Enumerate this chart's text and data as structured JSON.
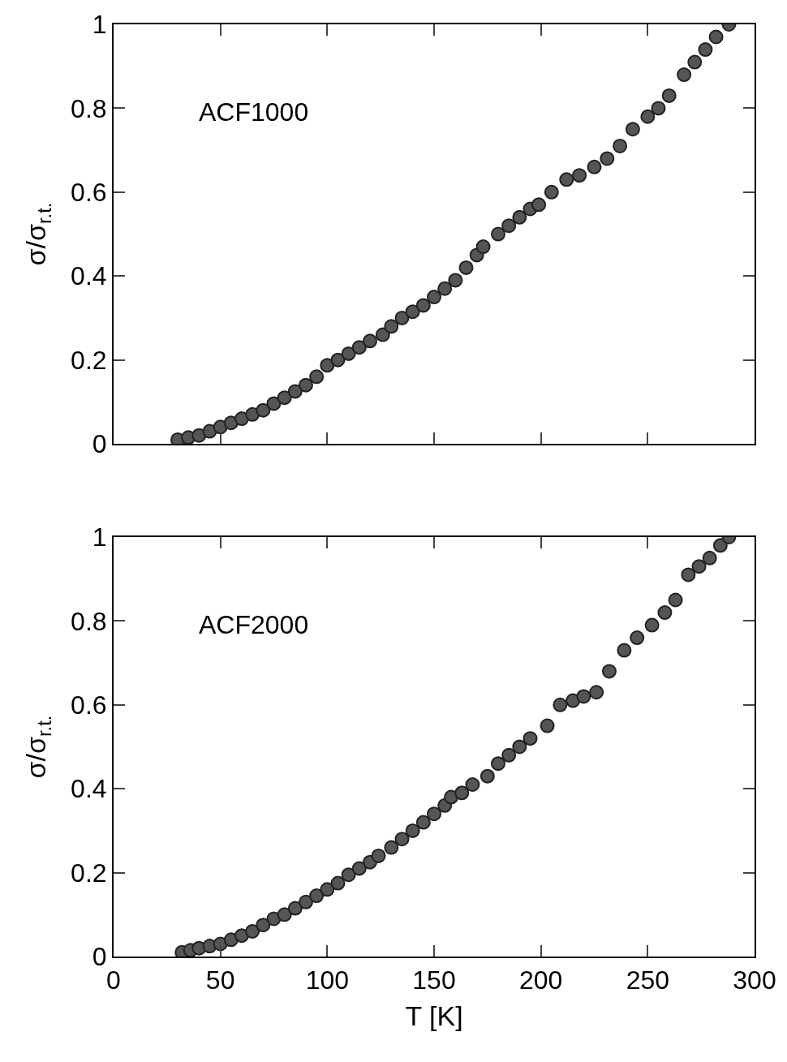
{
  "chart_data": [
    {
      "type": "scatter",
      "annotations": [
        "ACF1000"
      ],
      "ylabel": "σ/σ$_{r.t.}$",
      "marker": "circle",
      "legend": false,
      "tick_labels": "y",
      "xlim": [
        0,
        300
      ],
      "xticks": [
        {
          "value": 0,
          "label": null
        },
        {
          "value": 50,
          "label": null
        },
        {
          "value": 100,
          "label": null
        },
        {
          "value": 150,
          "label": null
        },
        {
          "value": 200,
          "label": null
        },
        {
          "value": 250,
          "label": null
        },
        {
          "value": 300,
          "label": null
        }
      ],
      "ylim": [
        0,
        1
      ],
      "yticks": [
        0,
        0.2,
        0.4,
        0.6,
        0.8,
        1
      ],
      "series": [
        {
          "color": "#555555",
          "x": [
            30,
            35,
            40,
            45,
            50,
            55,
            60,
            65,
            70,
            75,
            80,
            85,
            90,
            95,
            100,
            105,
            110,
            115,
            120,
            126,
            130,
            135,
            140,
            145,
            150,
            155,
            160,
            165,
            170,
            173,
            180,
            185,
            190,
            195,
            199,
            205,
            212,
            218,
            225,
            231,
            237,
            243,
            250,
            255,
            260,
            267,
            272,
            277,
            282,
            288
          ],
          "values": [
            0.01,
            0.015,
            0.02,
            0.03,
            0.04,
            0.05,
            0.06,
            0.07,
            0.08,
            0.096,
            0.11,
            0.125,
            0.14,
            0.16,
            0.187,
            0.2,
            0.215,
            0.23,
            0.245,
            0.26,
            0.28,
            0.3,
            0.315,
            0.33,
            0.35,
            0.37,
            0.39,
            0.42,
            0.45,
            0.47,
            0.5,
            0.52,
            0.54,
            0.56,
            0.57,
            0.6,
            0.63,
            0.64,
            0.66,
            0.68,
            0.71,
            0.75,
            0.78,
            0.8,
            0.83,
            0.88,
            0.91,
            0.94,
            0.97,
            1.0
          ]
        }
      ]
    },
    {
      "type": "scatter",
      "annotations": [
        "ACF2000"
      ],
      "ylabel": "σ/σ$_{r.t.}$",
      "xlabel": "T [K]",
      "marker": "circle",
      "legend": false,
      "xlim": [
        0,
        300
      ],
      "xticks": [
        0,
        50,
        100,
        150,
        200,
        250,
        300
      ],
      "ylim": [
        0,
        1
      ],
      "yticks": [
        0,
        0.2,
        0.4,
        0.6,
        0.8,
        1
      ],
      "series": [
        {
          "color": "#555555",
          "x": [
            32,
            36,
            40,
            45,
            50,
            55,
            60,
            65,
            70,
            75,
            80,
            85,
            90,
            95,
            100,
            105,
            110,
            115,
            120,
            124,
            130,
            135,
            140,
            145,
            150,
            155,
            158,
            163,
            168,
            175,
            180,
            185,
            190,
            195,
            203,
            209,
            215,
            220,
            226,
            232,
            239,
            245,
            252,
            258,
            263,
            269,
            274,
            279,
            284,
            288
          ],
          "values": [
            0.01,
            0.015,
            0.02,
            0.025,
            0.03,
            0.04,
            0.05,
            0.06,
            0.075,
            0.09,
            0.1,
            0.115,
            0.13,
            0.145,
            0.16,
            0.175,
            0.195,
            0.21,
            0.225,
            0.24,
            0.26,
            0.28,
            0.3,
            0.32,
            0.34,
            0.36,
            0.38,
            0.39,
            0.41,
            0.43,
            0.46,
            0.48,
            0.5,
            0.52,
            0.55,
            0.6,
            0.61,
            0.62,
            0.63,
            0.68,
            0.73,
            0.76,
            0.79,
            0.82,
            0.85,
            0.91,
            0.93,
            0.95,
            0.98,
            1.0
          ]
        }
      ]
    }
  ]
}
